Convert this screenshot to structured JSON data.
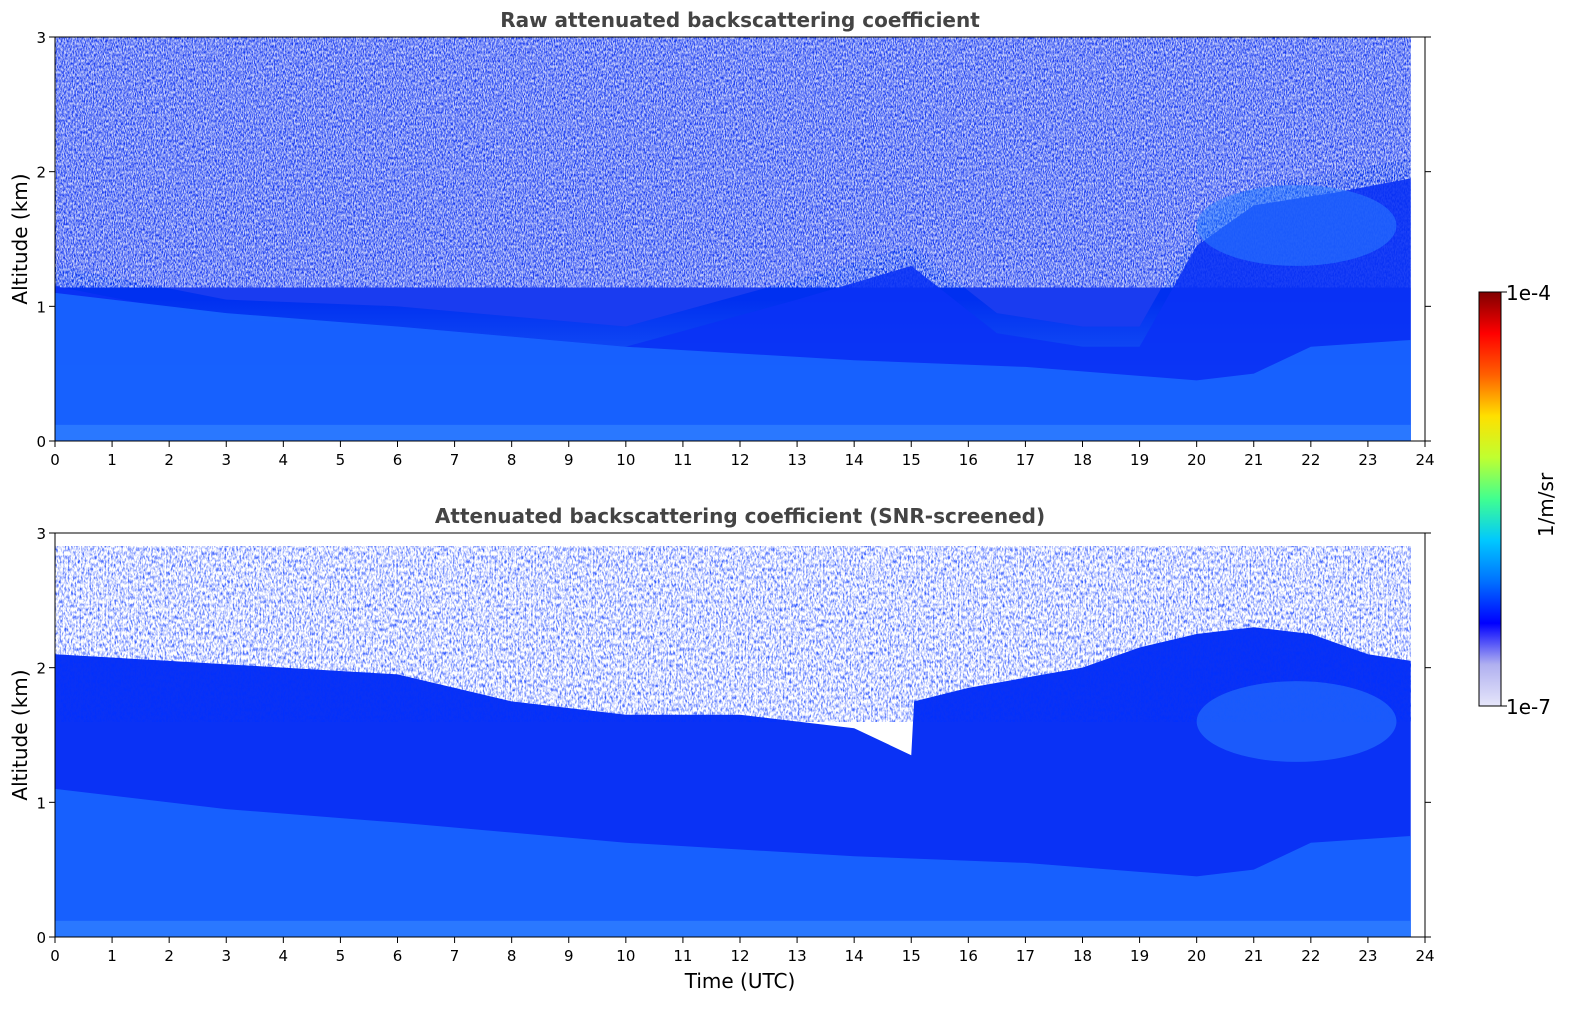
{
  "chart_data": [
    {
      "type": "heatmap",
      "title": "Raw attenuated backscattering coefficient",
      "xlabel": "",
      "ylabel": "Altitude (km)",
      "xlim": [
        0,
        24
      ],
      "ylim": [
        0,
        3
      ],
      "x_ticks": [
        "0",
        "1",
        "2",
        "3",
        "4",
        "5",
        "6",
        "7",
        "8",
        "9",
        "10",
        "11",
        "12",
        "13",
        "14",
        "15",
        "16",
        "17",
        "18",
        "19",
        "20",
        "21",
        "22",
        "23",
        "24"
      ],
      "y_ticks": [
        "0",
        "1",
        "2",
        "3"
      ],
      "data_x_end": 23.75,
      "noise_floor_km": [
        [
          0,
          1.3
        ],
        [
          3,
          1.05
        ],
        [
          6,
          1.0
        ],
        [
          10,
          0.85
        ],
        [
          13,
          1.2
        ],
        [
          15,
          1.45
        ],
        [
          16.5,
          0.95
        ],
        [
          18,
          0.85
        ],
        [
          19,
          0.85
        ],
        [
          20,
          1.6
        ],
        [
          21,
          1.9
        ],
        [
          22.5,
          2.0
        ],
        [
          23.75,
          2.1
        ]
      ],
      "boundary_layer_top_km": [
        [
          0,
          1.1
        ],
        [
          3,
          0.95
        ],
        [
          6,
          0.85
        ],
        [
          10,
          0.7
        ],
        [
          14,
          0.6
        ],
        [
          17,
          0.55
        ],
        [
          20,
          0.45
        ],
        [
          21,
          0.5
        ],
        [
          22,
          0.7
        ],
        [
          23.75,
          0.75
        ]
      ],
      "aerosol_plume": {
        "x_range": [
          20,
          23.5
        ],
        "y_range": [
          1.3,
          1.9
        ]
      }
    },
    {
      "type": "heatmap",
      "title": "Attenuated backscattering coefficient (SNR-screened)",
      "xlabel": "Time (UTC)",
      "ylabel": "Altitude (km)",
      "xlim": [
        0,
        24
      ],
      "ylim": [
        0,
        3
      ],
      "x_ticks": [
        "0",
        "1",
        "2",
        "3",
        "4",
        "5",
        "6",
        "7",
        "8",
        "9",
        "10",
        "11",
        "12",
        "13",
        "14",
        "15",
        "16",
        "17",
        "18",
        "19",
        "20",
        "21",
        "22",
        "23",
        "24"
      ],
      "y_ticks": [
        "0",
        "1",
        "2",
        "3"
      ],
      "data_x_end": 23.75,
      "screened_top_km": [
        [
          0,
          2.1
        ],
        [
          2,
          2.05
        ],
        [
          4,
          2.0
        ],
        [
          6,
          1.95
        ],
        [
          8,
          1.75
        ],
        [
          10,
          1.65
        ],
        [
          12,
          1.65
        ],
        [
          13,
          1.6
        ],
        [
          14,
          1.55
        ],
        [
          15,
          1.35
        ],
        [
          15.05,
          1.75
        ],
        [
          16,
          1.85
        ],
        [
          18,
          2.0
        ],
        [
          19,
          2.15
        ],
        [
          20,
          2.25
        ],
        [
          21,
          2.3
        ],
        [
          22,
          2.25
        ],
        [
          23,
          2.1
        ],
        [
          23.75,
          2.05
        ]
      ],
      "boundary_layer_top_km": [
        [
          0,
          1.1
        ],
        [
          3,
          0.95
        ],
        [
          6,
          0.85
        ],
        [
          10,
          0.7
        ],
        [
          14,
          0.6
        ],
        [
          17,
          0.55
        ],
        [
          20,
          0.45
        ],
        [
          21,
          0.5
        ],
        [
          22,
          0.7
        ],
        [
          23.75,
          0.75
        ]
      ],
      "aerosol_plume": {
        "x_range": [
          20,
          23.5
        ],
        "y_range": [
          1.3,
          1.9
        ]
      }
    }
  ],
  "colorbar": {
    "label": "1/m/sr",
    "max_label": "1e-4",
    "min_label": "1e-7",
    "scale": "log",
    "range": [
      1e-07,
      0.0001
    ],
    "colormap": [
      "#e6e6fa",
      "#b0b0f0",
      "#0000ff",
      "#0070ff",
      "#00c8ff",
      "#40ff90",
      "#c0ff30",
      "#ffe000",
      "#ff6000",
      "#ff0000",
      "#800000"
    ]
  }
}
